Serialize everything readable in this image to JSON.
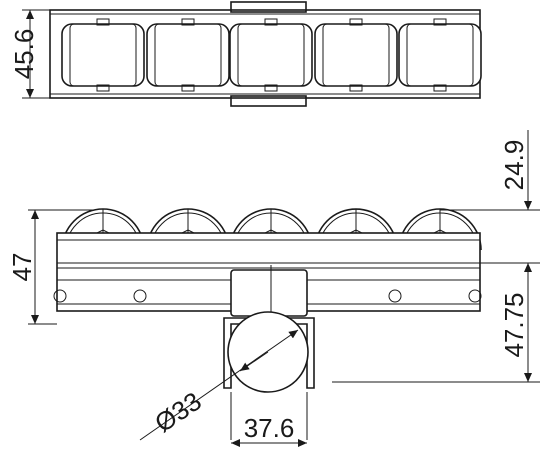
{
  "dimensions": {
    "top_height": "45.6",
    "side_height": "47",
    "roller_offset": "24.9",
    "rail_drop": "47.75",
    "roller_diameter": "Ø33",
    "bracket_width": "37.6"
  }
}
